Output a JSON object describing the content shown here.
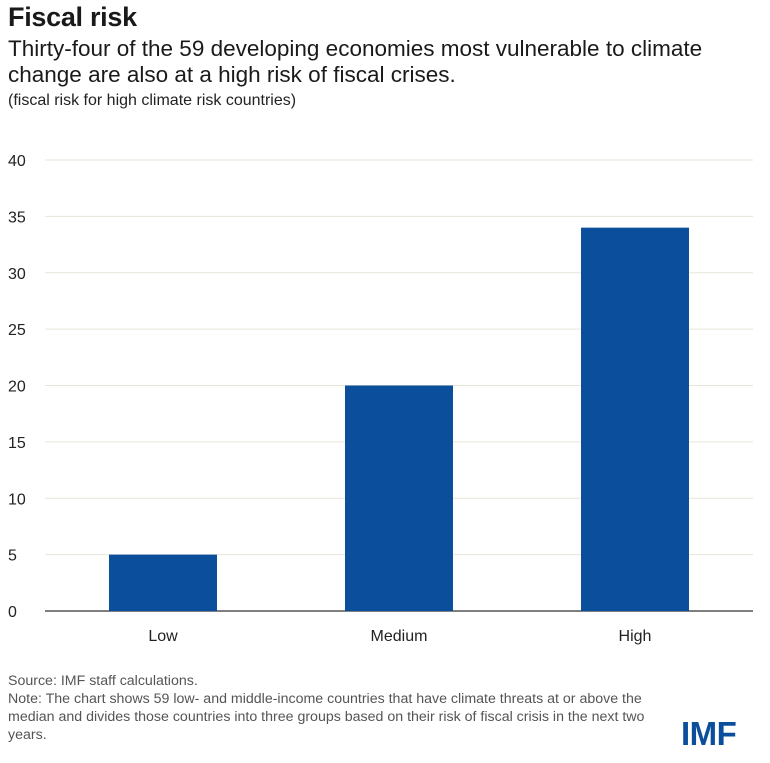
{
  "title": "Fiscal risk",
  "subtitle": "Thirty-four of the 59 developing economies most vulnerable to climate change are also at a high risk of fiscal crises.",
  "unit_note": "(fiscal risk for high climate risk countries)",
  "source": "Source: IMF staff calculations.",
  "note": "Note: The chart shows 59 low- and middle-income countries that have climate threats at or above the median and divides those countries into three groups based on their risk of fiscal crisis in the next two years.",
  "logo_text": "IMF",
  "colors": {
    "bar": "#0b4f9c",
    "grid": "#e6e6d8",
    "axis": "#333333",
    "logo": "#0b4f9c"
  },
  "chart_data": {
    "type": "bar",
    "categories": [
      "Low",
      "Medium",
      "High"
    ],
    "values": [
      5,
      20,
      34
    ],
    "xlabel": "",
    "ylabel": "",
    "ylim": [
      0,
      40
    ],
    "yticks": [
      0,
      5,
      10,
      15,
      20,
      25,
      30,
      35,
      40
    ],
    "grid": true,
    "legend": "none"
  }
}
